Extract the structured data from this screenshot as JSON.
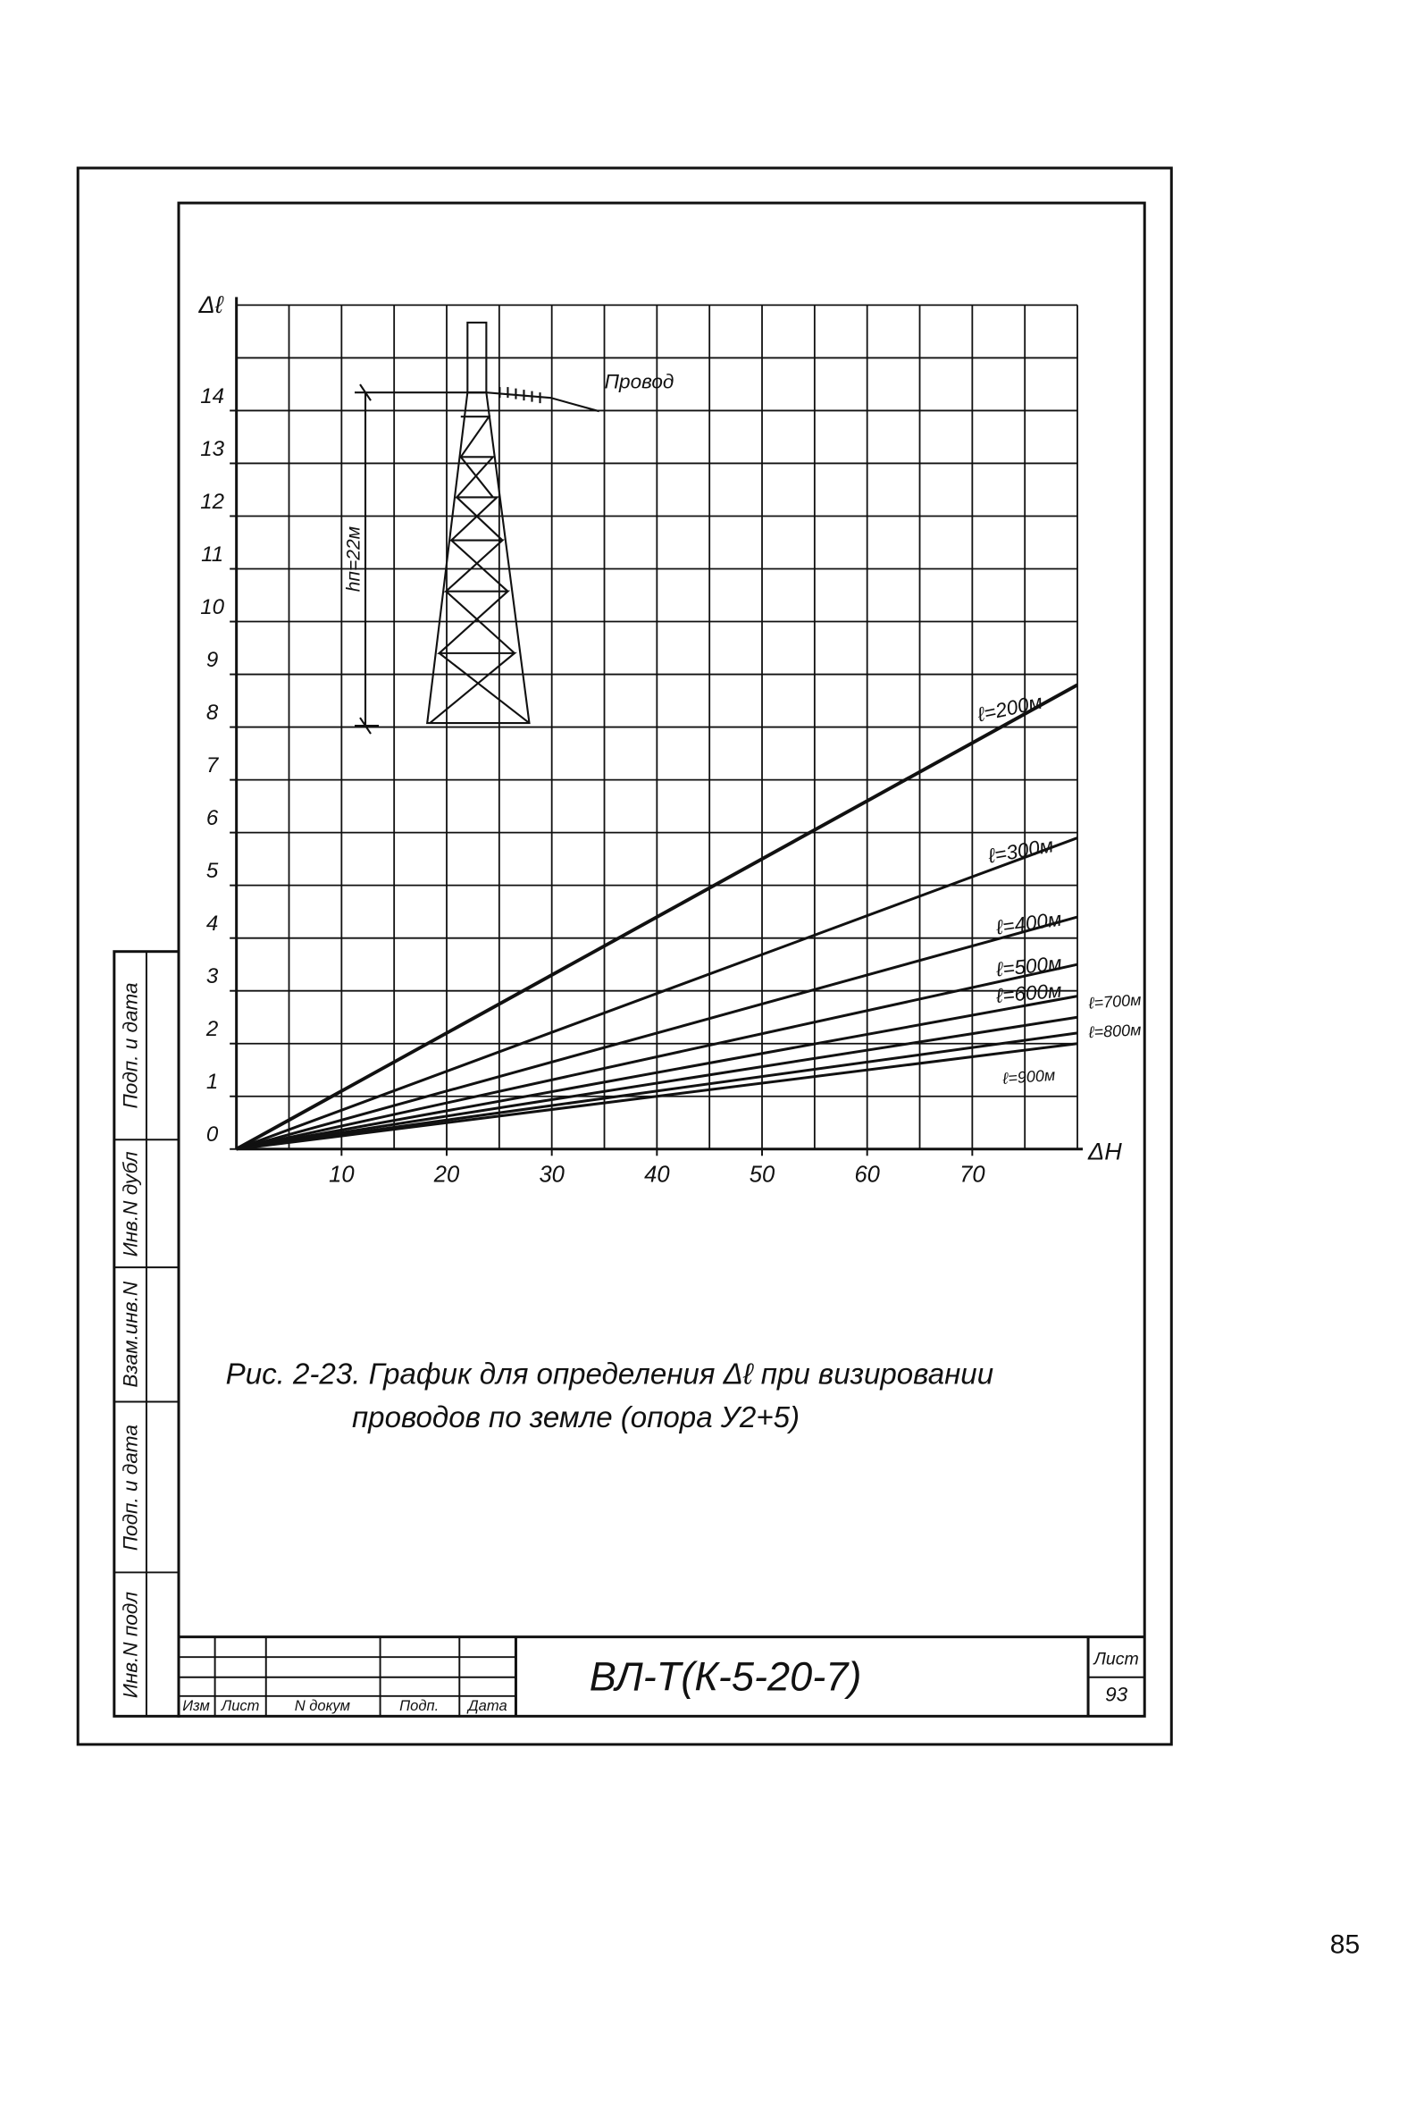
{
  "chart_data": {
    "type": "line",
    "y_label": "Δℓ",
    "x_label": "ΔH",
    "x": [
      0,
      80
    ],
    "xlim": [
      0,
      80
    ],
    "ylim": [
      0,
      16
    ],
    "xticks": [
      10,
      20,
      30,
      40,
      50,
      60,
      70
    ],
    "yticks": [
      0,
      1,
      2,
      3,
      4,
      5,
      6,
      7,
      8,
      9,
      10,
      11,
      12,
      13,
      14
    ],
    "xgrid": [
      0,
      5,
      10,
      15,
      20,
      25,
      30,
      35,
      40,
      45,
      50,
      55,
      60,
      65,
      70,
      75,
      80
    ],
    "ygrid": [
      0,
      1,
      2,
      3,
      4,
      5,
      6,
      7,
      8,
      9,
      10,
      11,
      12,
      13,
      14,
      15,
      16
    ],
    "grid": true,
    "series": [
      {
        "name": "ℓ=200м",
        "color": "#111111",
        "values": [
          0,
          8.8
        ]
      },
      {
        "name": "ℓ=300м",
        "color": "#111111",
        "values": [
          0,
          5.9
        ]
      },
      {
        "name": "ℓ=400м",
        "color": "#111111",
        "values": [
          0,
          4.4
        ]
      },
      {
        "name": "ℓ=500м",
        "color": "#111111",
        "values": [
          0,
          3.5
        ]
      },
      {
        "name": "ℓ=600м",
        "color": "#111111",
        "values": [
          0,
          2.9
        ]
      },
      {
        "name": "ℓ=700м",
        "color": "#111111",
        "values": [
          0,
          2.5
        ]
      },
      {
        "name": "ℓ=800м",
        "color": "#111111",
        "values": [
          0,
          2.2
        ]
      },
      {
        "name": "ℓ=900м",
        "color": "#111111",
        "values": [
          0,
          2.0
        ]
      }
    ],
    "annotations": [
      "Провод",
      "hп=22м"
    ]
  },
  "caption": [
    "Рис. 2-23. График для определения Δℓ при визировании",
    "проводов по земле (опора У2+5)"
  ],
  "side_stamps": [
    "Инв.N подл",
    "Подп. и дата",
    "Взам.инв.N",
    "Инв.N дубл",
    "Подп. и дата"
  ],
  "title_block": {
    "designation": "ВЛ-Т(К-5-20-7)",
    "sheet_label": "Лист",
    "sheet": "93",
    "columns": [
      "Изм",
      "Лист",
      "N докум",
      "Подп.",
      "Дата"
    ]
  },
  "page_number": "85"
}
